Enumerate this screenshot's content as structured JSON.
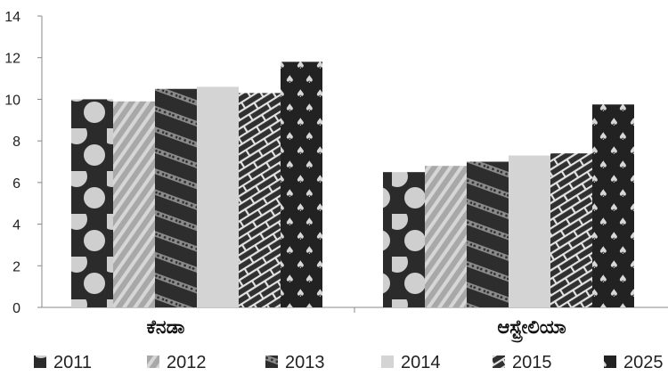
{
  "chart_data": {
    "type": "bar",
    "categories": [
      "ಕೆನಡಾ",
      "ಆಸ್ಟ್ರೇಲಿಯಾ"
    ],
    "series": [
      {
        "name": "2011",
        "values": [
          10.0,
          6.5
        ],
        "pattern": "dots",
        "color": "#2b2b2b"
      },
      {
        "name": "2012",
        "values": [
          9.9,
          6.8
        ],
        "pattern": "diagonal-lines",
        "color": "#a3a3a3"
      },
      {
        "name": "2013",
        "values": [
          10.5,
          7.0
        ],
        "pattern": "dotted-stripes",
        "color": "#2d2d2d"
      },
      {
        "name": "2014",
        "values": [
          10.6,
          7.3
        ],
        "pattern": "solid",
        "color": "#d4d4d4"
      },
      {
        "name": "2015",
        "values": [
          10.3,
          7.4
        ],
        "pattern": "brick",
        "color": "#2f2f2f"
      },
      {
        "name": "2025",
        "values": [
          11.8,
          9.75
        ],
        "pattern": "spades",
        "color": "#222222"
      }
    ],
    "yticks": [
      "0",
      "2",
      "4",
      "6",
      "8",
      "10",
      "12",
      "14"
    ],
    "ylim": [
      0,
      14
    ],
    "grid": false,
    "legend": "bottom"
  }
}
